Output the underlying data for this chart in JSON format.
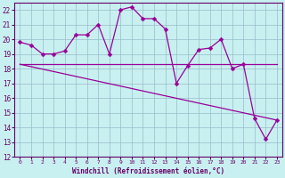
{
  "title": "",
  "xlabel": "Windchill (Refroidissement éolien,°C)",
  "ylabel": "",
  "bg_color": "#c8f0f0",
  "grid_color": "#99bbcc",
  "line_color": "#990099",
  "ylim": [
    12,
    22.5
  ],
  "xlim": [
    -0.5,
    23.5
  ],
  "yticks": [
    12,
    13,
    14,
    15,
    16,
    17,
    18,
    19,
    20,
    21,
    22
  ],
  "xticks": [
    0,
    1,
    2,
    3,
    4,
    5,
    6,
    7,
    8,
    9,
    10,
    11,
    12,
    13,
    14,
    15,
    16,
    17,
    18,
    19,
    20,
    21,
    22,
    23
  ],
  "xtick_labels": [
    "0",
    "1",
    "2",
    "3",
    "4",
    "5",
    "6",
    "7",
    "8",
    "9",
    "10",
    "11",
    "12",
    "13",
    "14",
    "15",
    "16",
    "17",
    "18",
    "19",
    "20",
    "21",
    "22",
    "23"
  ],
  "series1_x": [
    0,
    1,
    2,
    3,
    4,
    5,
    6,
    7,
    8,
    9,
    10,
    11,
    12,
    13,
    14,
    15,
    16,
    17,
    18,
    19,
    20,
    21,
    22,
    23
  ],
  "series1_y": [
    19.8,
    19.6,
    19.0,
    19.0,
    19.2,
    20.3,
    20.3,
    21.0,
    19.0,
    22.0,
    22.2,
    21.4,
    21.4,
    20.7,
    17.0,
    18.2,
    19.3,
    19.4,
    20.0,
    18.0,
    18.3,
    14.6,
    13.2,
    14.5
  ],
  "series2_x": [
    0,
    23
  ],
  "series2_y": [
    18.3,
    18.3
  ],
  "series3_x": [
    0,
    23
  ],
  "series3_y": [
    18.3,
    14.5
  ],
  "markersize": 2.5,
  "linewidth": 0.9
}
